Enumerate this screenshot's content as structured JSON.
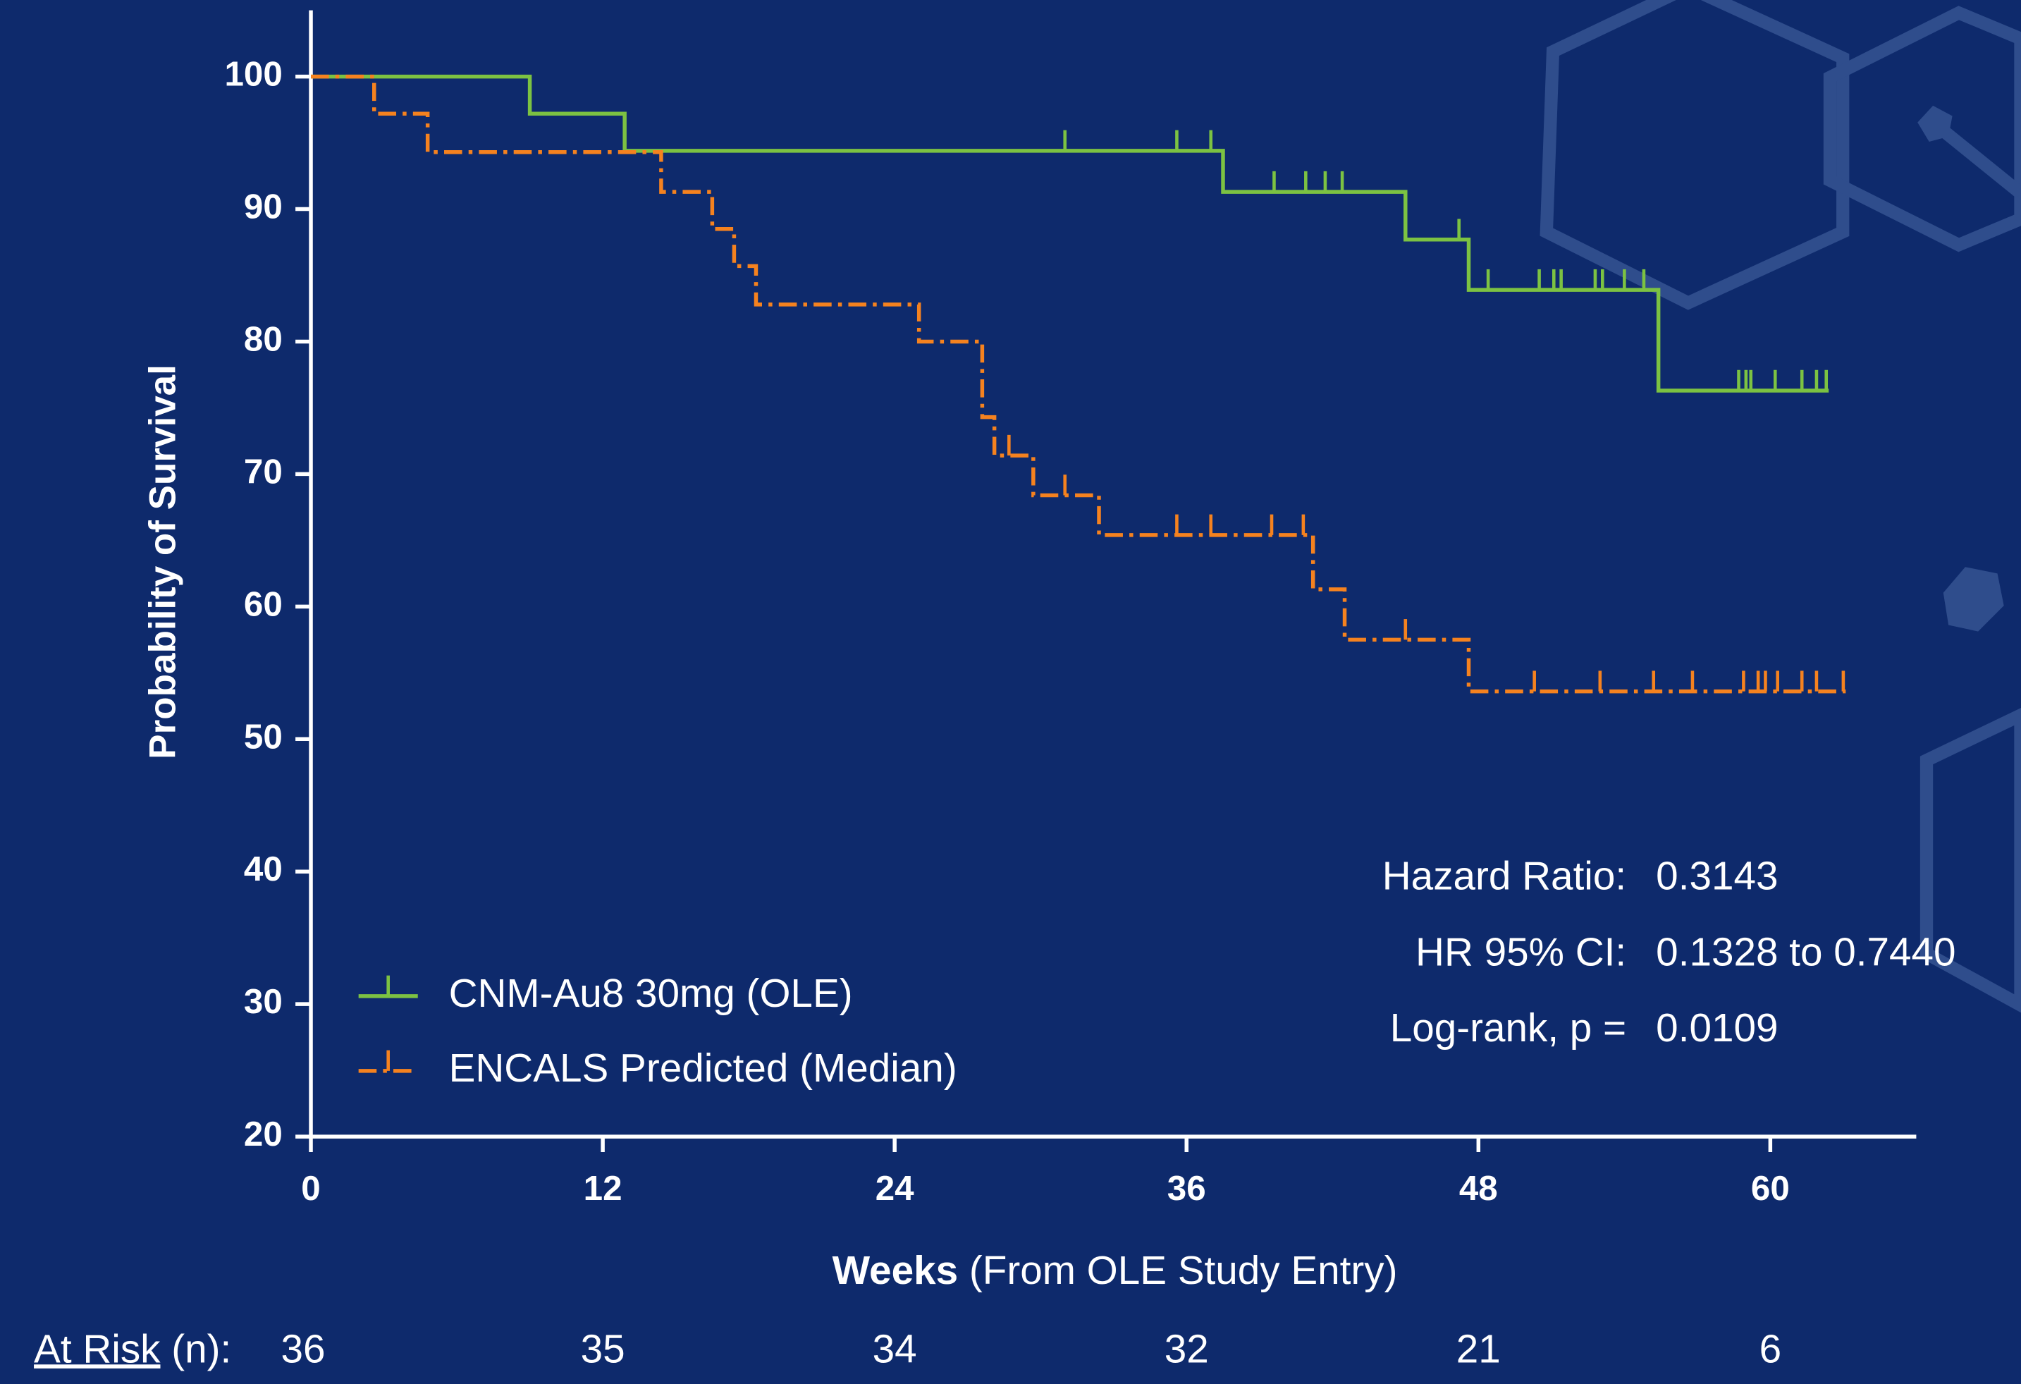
{
  "chart_data": {
    "type": "step",
    "ylabel": "Probability of Survival",
    "xlabel_bold": "Weeks",
    "xlabel_rest": "(From OLE Study Entry)",
    "xlim": [
      0,
      66
    ],
    "ylim": [
      20,
      105
    ],
    "xticks": [
      0,
      12,
      24,
      36,
      48,
      60
    ],
    "yticks": [
      20,
      30,
      40,
      50,
      60,
      70,
      80,
      90,
      100
    ],
    "legend": "lower left",
    "series": [
      {
        "name": "CNM-Au8 30mg (OLE)",
        "color": "#7cc242",
        "dash": false,
        "x": [
          0,
          9,
          12.9,
          37.5,
          45,
          47.6,
          55.4,
          62.4
        ],
        "values": [
          100,
          97.2,
          94.4,
          91.3,
          87.7,
          83.9,
          76.3,
          76.3
        ],
        "censor_x": [
          31.0,
          35.6,
          37.0,
          39.6,
          40.9,
          41.7,
          42.4,
          47.2,
          48.4,
          50.5,
          51.1,
          51.4,
          52.8,
          53.1,
          54.0,
          54.8,
          58.7,
          59.0,
          59.2,
          60.2,
          61.3,
          61.9,
          62.3
        ],
        "censor_values": [
          94.4,
          94.4,
          94.4,
          91.3,
          91.3,
          91.3,
          91.3,
          87.7,
          83.9,
          83.9,
          83.9,
          83.9,
          83.9,
          83.9,
          83.9,
          83.9,
          76.3,
          76.3,
          76.3,
          76.3,
          76.3,
          76.3,
          76.3
        ]
      },
      {
        "name": "ENCALS Predicted (Median)",
        "color": "#f5821f",
        "dash": true,
        "x": [
          0,
          2.6,
          4.8,
          14.4,
          16.5,
          17.4,
          18.3,
          25.0,
          27.6,
          28.1,
          29.7,
          32.4,
          41.2,
          42.5,
          47.6,
          63.1
        ],
        "values": [
          100,
          97.2,
          94.3,
          91.3,
          88.5,
          85.7,
          82.8,
          80.0,
          74.3,
          71.4,
          68.4,
          65.4,
          61.3,
          57.5,
          53.6,
          53.6
        ],
        "censor_x": [
          28.7,
          31.0,
          35.6,
          37.0,
          39.5,
          40.8,
          45.0,
          50.3,
          53.0,
          55.2,
          56.8,
          58.9,
          59.5,
          59.8,
          60.3,
          61.3,
          61.9,
          63.0
        ],
        "censor_values": [
          71.4,
          68.4,
          65.4,
          65.4,
          65.4,
          65.4,
          57.5,
          53.6,
          53.6,
          53.6,
          53.6,
          53.6,
          53.6,
          53.6,
          53.6,
          53.6,
          53.6,
          53.6
        ]
      }
    ],
    "stats": [
      {
        "label": "Hazard Ratio:",
        "value": 0.3143
      },
      {
        "label": "HR 95% CI:",
        "value": "0.1328 to 0.7440"
      },
      {
        "label": "Log-rank, p =",
        "value": 0.0109
      }
    ],
    "at_risk": {
      "label": "At Risk",
      "suffix": "(n):",
      "values": [
        36,
        35,
        34,
        32,
        21,
        6
      ]
    }
  }
}
